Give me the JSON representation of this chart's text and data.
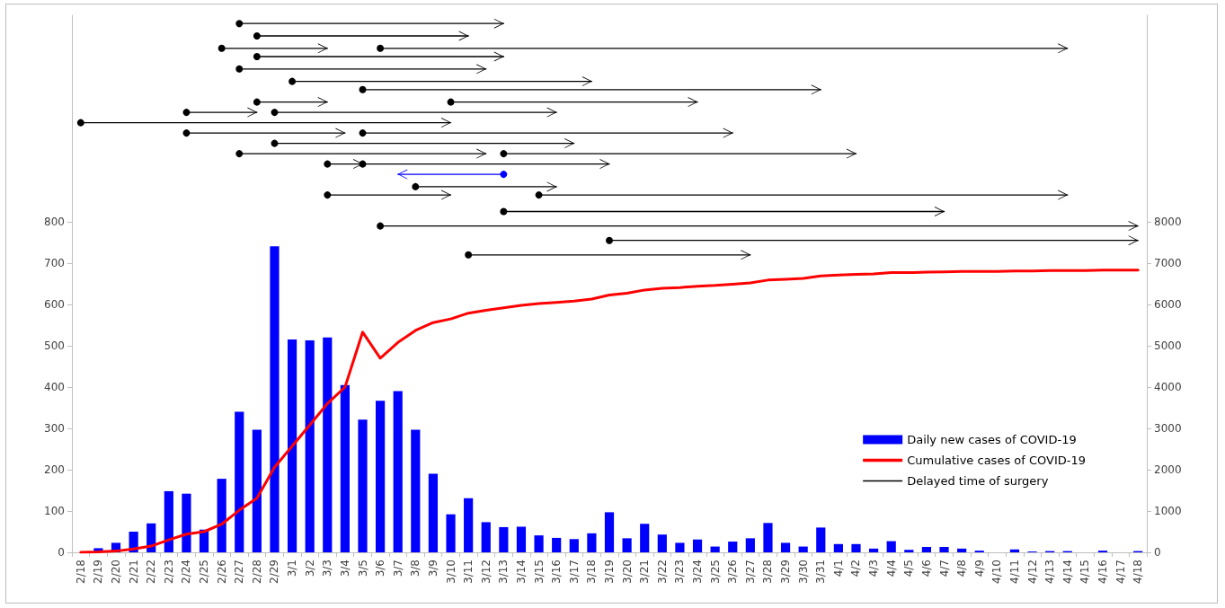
{
  "chart_data": {
    "type": "bar",
    "categories": [
      "2/18",
      "2/19",
      "2/20",
      "2/21",
      "2/22",
      "2/23",
      "2/24",
      "2/25",
      "2/26",
      "2/27",
      "2/28",
      "2/29",
      "3/1",
      "3/2",
      "3/3",
      "3/4",
      "3/5",
      "3/6",
      "3/7",
      "3/8",
      "3/9",
      "3/10",
      "3/11",
      "3/12",
      "3/13",
      "3/14",
      "3/15",
      "3/16",
      "3/17",
      "3/18",
      "3/19",
      "3/20",
      "3/21",
      "3/22",
      "3/23",
      "3/24",
      "3/25",
      "3/26",
      "3/27",
      "3/28",
      "3/29",
      "3/30",
      "3/31",
      "4/1",
      "4/2",
      "4/3",
      "4/4",
      "4/5",
      "4/6",
      "4/7",
      "4/8",
      "4/9",
      "4/10",
      "4/11",
      "4/12",
      "4/13",
      "4/14",
      "4/15",
      "4/16",
      "4/17",
      "4/18"
    ],
    "series": [
      {
        "name": "Daily new cases of COVID-19",
        "color": "#0000ff",
        "values": [
          null,
          10,
          23,
          50,
          70,
          148,
          142,
          55,
          178,
          340,
          297,
          741,
          515,
          513,
          520,
          405,
          321,
          367,
          390,
          297,
          190,
          92,
          131,
          73,
          61,
          62,
          41,
          35,
          32,
          46,
          97,
          34,
          69,
          43,
          23,
          31,
          14,
          26,
          34,
          71,
          23,
          14,
          60,
          20,
          20,
          9,
          27,
          6,
          13,
          13,
          9,
          4,
          0,
          7,
          2,
          3,
          3,
          0,
          4,
          0,
          3
        ]
      },
      {
        "name": "Cumulative cases of COVID-19",
        "type": "line",
        "color": "#ff0000",
        "axis": "y2",
        "marker": "none",
        "values": [
          0,
          10,
          30,
          80,
          150,
          300,
          440,
          500,
          680,
          1020,
          1310,
          2060,
          2570,
          3080,
          3600,
          4000,
          5330,
          4700,
          5080,
          5370,
          5560,
          5650,
          5790,
          5860,
          5920,
          5980,
          6020,
          6050,
          6080,
          6130,
          6230,
          6270,
          6350,
          6390,
          6410,
          6440,
          6460,
          6490,
          6520,
          6590,
          6610,
          6630,
          6690,
          6710,
          6730,
          6740,
          6770,
          6770,
          6780,
          6790,
          6800,
          6800,
          6800,
          6810,
          6810,
          6820,
          6820,
          6820,
          6830,
          6830,
          6830
        ]
      },
      {
        "name": "Delayed time of surgery",
        "type": "line",
        "color": "#000000",
        "marker": "circle",
        "x": [
          "2/27",
          "3/13"
        ],
        "values": [
          1280,
          1280
        ]
      },
      {
        "type": "line",
        "color": "#000000",
        "marker": "circle",
        "x": [
          "2/28",
          "3/11"
        ],
        "values": [
          1250,
          1250
        ]
      },
      {
        "type": "line",
        "color": "#000000",
        "marker": "circle",
        "x": [
          "2/26",
          "3/3"
        ],
        "values": [
          1220,
          1220
        ]
      },
      {
        "type": "line",
        "color": "#000000",
        "marker": "circle",
        "x": [
          "3/6",
          "4/14"
        ],
        "values": [
          1220,
          1220
        ]
      },
      {
        "type": "line",
        "color": "#000000",
        "marker": "circle",
        "x": [
          "2/28",
          "3/13"
        ],
        "values": [
          1200,
          1200
        ]
      },
      {
        "type": "line",
        "color": "#000000",
        "marker": "circle",
        "x": [
          "2/27",
          "3/12"
        ],
        "values": [
          1170,
          1170
        ]
      },
      {
        "type": "line",
        "color": "#000000",
        "marker": "circle",
        "x": [
          "3/1",
          "3/18"
        ],
        "values": [
          1140,
          1140
        ]
      },
      {
        "type": "line",
        "color": "#000000",
        "marker": "circle",
        "x": [
          "3/5",
          "3/31"
        ],
        "values": [
          1120,
          1120
        ]
      },
      {
        "type": "line",
        "color": "#000000",
        "marker": "circle",
        "x": [
          "2/28",
          "3/3"
        ],
        "values": [
          1090,
          1090
        ]
      },
      {
        "type": "line",
        "color": "#000000",
        "marker": "circle",
        "x": [
          "3/10",
          "3/24"
        ],
        "values": [
          1090,
          1090
        ]
      },
      {
        "type": "line",
        "color": "#000000",
        "marker": "circle",
        "x": [
          "2/24",
          "2/28"
        ],
        "values": [
          1065,
          1065
        ]
      },
      {
        "type": "line",
        "color": "#000000",
        "marker": "circle",
        "x": [
          "2/29",
          "3/16"
        ],
        "values": [
          1065,
          1065
        ]
      },
      {
        "type": "line",
        "color": "#000000",
        "marker": "circle",
        "x": [
          "2/18",
          "3/10"
        ],
        "values": [
          1040,
          1040
        ]
      },
      {
        "type": "line",
        "color": "#000000",
        "marker": "circle",
        "x": [
          "2/24",
          "3/4"
        ],
        "values": [
          1015,
          1015
        ]
      },
      {
        "type": "line",
        "color": "#000000",
        "marker": "circle",
        "x": [
          "3/5",
          "3/26"
        ],
        "values": [
          1015,
          1015
        ]
      },
      {
        "type": "line",
        "color": "#000000",
        "marker": "circle",
        "x": [
          "2/29",
          "3/17"
        ],
        "values": [
          990,
          990
        ]
      },
      {
        "type": "line",
        "color": "#000000",
        "marker": "circle",
        "x": [
          "2/27",
          "3/12"
        ],
        "values": [
          965,
          965
        ]
      },
      {
        "type": "line",
        "color": "#000000",
        "marker": "circle",
        "x": [
          "3/13",
          "4/2"
        ],
        "values": [
          965,
          965
        ]
      },
      {
        "type": "line",
        "color": "#000000",
        "marker": "circle",
        "x": [
          "3/3",
          "3/5"
        ],
        "values": [
          940,
          940
        ]
      },
      {
        "type": "line",
        "color": "#000000",
        "marker": "circle",
        "x": [
          "3/5",
          "3/19"
        ],
        "values": [
          940,
          940
        ]
      },
      {
        "type": "line",
        "color": "#0000ff",
        "marker": "circle",
        "x": [
          "3/13",
          "3/7"
        ],
        "values": [
          915,
          915
        ]
      },
      {
        "type": "line",
        "color": "#000000",
        "marker": "circle",
        "x": [
          "3/8",
          "3/16"
        ],
        "values": [
          885,
          885
        ]
      },
      {
        "type": "line",
        "color": "#000000",
        "marker": "circle",
        "x": [
          "3/3",
          "3/10"
        ],
        "values": [
          865,
          865
        ]
      },
      {
        "type": "line",
        "color": "#000000",
        "marker": "circle",
        "x": [
          "3/15",
          "4/14"
        ],
        "values": [
          865,
          865
        ]
      },
      {
        "type": "line",
        "color": "#000000",
        "marker": "circle",
        "x": [
          "3/13",
          "4/7"
        ],
        "values": [
          825,
          825
        ]
      },
      {
        "type": "line",
        "color": "#000000",
        "marker": "circle",
        "x": [
          "3/6",
          "4/18"
        ],
        "values": [
          790,
          790
        ]
      },
      {
        "type": "line",
        "color": "#000000",
        "marker": "circle",
        "x": [
          "3/19",
          "4/18"
        ],
        "values": [
          755,
          755
        ]
      },
      {
        "type": "line",
        "color": "#000000",
        "marker": "circle",
        "x": [
          "3/11",
          "3/27"
        ],
        "values": [
          720,
          720
        ]
      }
    ],
    "ylim": [
      0,
      1300
    ],
    "yticks": [
      0,
      100,
      200,
      300,
      400,
      500,
      600,
      700,
      800
    ],
    "y2lim": [
      0,
      13000
    ],
    "y2ticks": [
      0,
      1000,
      2000,
      3000,
      4000,
      5000,
      6000,
      7000,
      8000
    ],
    "legend": "right"
  }
}
